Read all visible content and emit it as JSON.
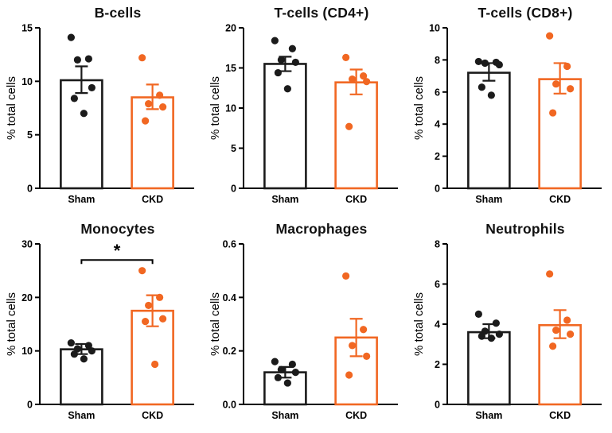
{
  "figure": {
    "background": "#ffffff"
  },
  "colors": {
    "sham": "#1b1b1b",
    "ckd": "#F16722"
  },
  "chart_data": [
    {
      "type": "bar",
      "title": "B-cells",
      "ylabel": "% total cells",
      "categories": [
        "Sham",
        "CKD"
      ],
      "ylim": [
        0,
        15
      ],
      "yticks": [
        0,
        5,
        10,
        15
      ],
      "ytick_labels": [
        "0",
        "5",
        "10",
        "15"
      ],
      "groups": [
        {
          "name": "Sham",
          "mean": 10.1,
          "error": [
            8.9,
            11.4
          ],
          "points": [
            14.1,
            12.1,
            12.0,
            9.4,
            8.4,
            7.0
          ],
          "color_key": "sham"
        },
        {
          "name": "CKD",
          "mean": 8.5,
          "error": [
            7.4,
            9.7
          ],
          "points": [
            12.2,
            8.7,
            7.9,
            7.6,
            6.3
          ],
          "color_key": "ckd"
        }
      ]
    },
    {
      "type": "bar",
      "title": "T-cells (CD4+)",
      "ylabel": "% total cells",
      "categories": [
        "Sham",
        "CKD"
      ],
      "ylim": [
        0,
        20
      ],
      "yticks": [
        0,
        5,
        10,
        15,
        20
      ],
      "ytick_labels": [
        "0",
        "5",
        "10",
        "15",
        "20"
      ],
      "groups": [
        {
          "name": "Sham",
          "mean": 15.5,
          "error": [
            14.6,
            16.4
          ],
          "points": [
            18.4,
            17.4,
            16.0,
            15.7,
            14.4,
            12.4
          ],
          "color_key": "sham"
        },
        {
          "name": "CKD",
          "mean": 13.2,
          "error": [
            11.7,
            14.8
          ],
          "points": [
            16.3,
            14.0,
            13.6,
            13.3,
            7.7
          ],
          "color_key": "ckd"
        }
      ]
    },
    {
      "type": "bar",
      "title": "T-cells (CD8+)",
      "ylabel": "% total cells",
      "categories": [
        "Sham",
        "CKD"
      ],
      "ylim": [
        0,
        10
      ],
      "yticks": [
        0,
        2,
        4,
        6,
        8,
        10
      ],
      "ytick_labels": [
        "0",
        "2",
        "4",
        "6",
        "8",
        "10"
      ],
      "groups": [
        {
          "name": "Sham",
          "mean": 7.2,
          "error": [
            6.7,
            7.8
          ],
          "points": [
            7.9,
            7.85,
            7.8,
            7.7,
            6.3,
            5.8
          ],
          "color_key": "sham"
        },
        {
          "name": "CKD",
          "mean": 6.8,
          "error": [
            5.9,
            7.8
          ],
          "points": [
            9.5,
            7.6,
            6.5,
            6.2,
            4.7
          ],
          "color_key": "ckd"
        }
      ]
    },
    {
      "type": "bar",
      "title": "Monocytes",
      "ylabel": "% total cells",
      "categories": [
        "Sham",
        "CKD"
      ],
      "ylim": [
        0,
        30
      ],
      "yticks": [
        0,
        10,
        20,
        30
      ],
      "ytick_labels": [
        "0",
        "10",
        "20",
        "30"
      ],
      "significance": {
        "label": "*",
        "y": 27
      },
      "groups": [
        {
          "name": "Sham",
          "mean": 10.3,
          "error": [
            9.4,
            11.3
          ],
          "points": [
            11.5,
            11.0,
            10.4,
            10.0,
            9.4,
            8.5
          ],
          "color_key": "sham"
        },
        {
          "name": "CKD",
          "mean": 17.5,
          "error": [
            14.6,
            20.4
          ],
          "points": [
            25.0,
            20.0,
            18.5,
            16.0,
            15.5,
            7.5
          ],
          "color_key": "ckd"
        }
      ]
    },
    {
      "type": "bar",
      "title": "Macrophages",
      "ylabel": "% total cells",
      "categories": [
        "Sham",
        "CKD"
      ],
      "ylim": [
        0,
        0.6
      ],
      "yticks": [
        0,
        0.2,
        0.4,
        0.6
      ],
      "ytick_labels": [
        "0.0",
        "0.2",
        "0.4",
        "0.6"
      ],
      "groups": [
        {
          "name": "Sham",
          "mean": 0.12,
          "error": [
            0.1,
            0.14
          ],
          "points": [
            0.16,
            0.15,
            0.13,
            0.12,
            0.1,
            0.08
          ],
          "color_key": "sham"
        },
        {
          "name": "CKD",
          "mean": 0.25,
          "error": [
            0.18,
            0.32
          ],
          "points": [
            0.48,
            0.28,
            0.22,
            0.18,
            0.11
          ],
          "color_key": "ckd"
        }
      ]
    },
    {
      "type": "bar",
      "title": "Neutrophils",
      "ylabel": "% total cells",
      "categories": [
        "Sham",
        "CKD"
      ],
      "ylim": [
        0,
        8
      ],
      "yticks": [
        0,
        2,
        4,
        6,
        8
      ],
      "ytick_labels": [
        "0",
        "2",
        "4",
        "6",
        "8"
      ],
      "groups": [
        {
          "name": "Sham",
          "mean": 3.6,
          "error": [
            3.3,
            4.0
          ],
          "points": [
            4.5,
            4.05,
            3.65,
            3.5,
            3.4,
            3.3
          ],
          "color_key": "sham"
        },
        {
          "name": "CKD",
          "mean": 3.95,
          "error": [
            3.3,
            4.7
          ],
          "points": [
            6.5,
            4.2,
            3.7,
            3.5,
            2.9
          ],
          "color_key": "ckd"
        }
      ]
    }
  ]
}
